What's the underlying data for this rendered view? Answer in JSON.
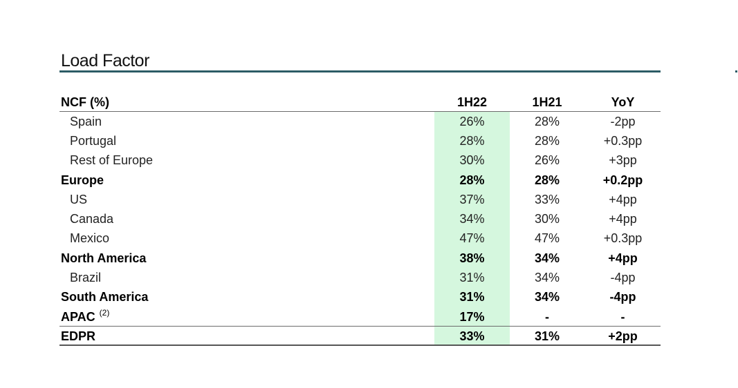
{
  "title": "Load Factor",
  "colors": {
    "title_rule": "#2c5b65",
    "highlight": "#d5f7de"
  },
  "table": {
    "headers": {
      "label": "NCF (%)",
      "col1": "1H22",
      "col2": "1H21",
      "col3": "YoY"
    },
    "rows": [
      {
        "label": "Spain",
        "sup": "",
        "v1": "26%",
        "v2": "28%",
        "v3": "-2pp",
        "style": "sub"
      },
      {
        "label": "Portugal",
        "sup": "",
        "v1": "28%",
        "v2": "28%",
        "v3": "+0.3pp",
        "style": "sub"
      },
      {
        "label": "Rest of Europe",
        "sup": "",
        "v1": "30%",
        "v2": "26%",
        "v3": "+3pp",
        "style": "sub"
      },
      {
        "label": "Europe",
        "sup": "",
        "v1": "28%",
        "v2": "28%",
        "v3": "+0.2pp",
        "style": "bold"
      },
      {
        "label": "US",
        "sup": "",
        "v1": "37%",
        "v2": "33%",
        "v3": "+4pp",
        "style": "sub"
      },
      {
        "label": "Canada",
        "sup": "",
        "v1": "34%",
        "v2": "30%",
        "v3": "+4pp",
        "style": "sub"
      },
      {
        "label": "Mexico",
        "sup": "",
        "v1": "47%",
        "v2": "47%",
        "v3": "+0.3pp",
        "style": "sub"
      },
      {
        "label": "North America",
        "sup": "",
        "v1": "38%",
        "v2": "34%",
        "v3": "+4pp",
        "style": "bold"
      },
      {
        "label": "Brazil",
        "sup": "",
        "v1": "31%",
        "v2": "34%",
        "v3": "-4pp",
        "style": "sub"
      },
      {
        "label": "South America",
        "sup": "",
        "v1": "31%",
        "v2": "34%",
        "v3": "-4pp",
        "style": "bold"
      },
      {
        "label": "APAC",
        "sup": "(2)",
        "v1": "17%",
        "v2": "-",
        "v3": "-",
        "style": "bold"
      },
      {
        "label": "EDPR",
        "sup": "",
        "v1": "33%",
        "v2": "31%",
        "v3": "+2pp",
        "style": "bold"
      }
    ]
  }
}
